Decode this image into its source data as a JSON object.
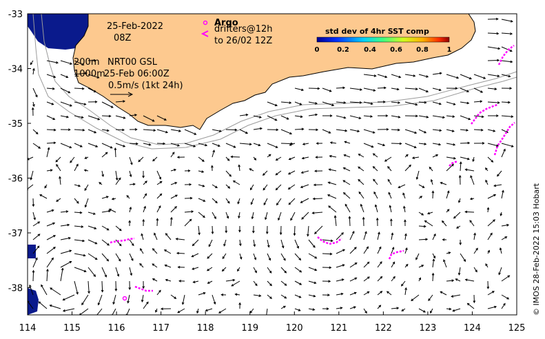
{
  "map": {
    "date": "25-Feb-2022",
    "hour": "08Z",
    "legend_argo_title": "Argo",
    "legend_drifters": "drifters@12h",
    "legend_drifters_until": "to 26/02 12Z",
    "isobath_200": "200m",
    "isobath_1000": "1000m",
    "product": "NRT00 GSL",
    "product_time": "25-Feb 06:00Z",
    "scale_text": "0.5m/s (1kt 24h)",
    "credit": "© IMOS 28-Feb-2022 15:03 Hobart",
    "colorbar": {
      "title": "std dev of 4hr SST comp",
      "ticks": [
        "0",
        "0.2",
        "0.4",
        "0.6",
        "0.8",
        "1"
      ]
    },
    "lon_ticks": [
      "114",
      "115",
      "116",
      "117",
      "118",
      "119",
      "120",
      "121",
      "122",
      "123",
      "124",
      "125"
    ],
    "lat_ticks": [
      "-33",
      "-34",
      "-35",
      "-36",
      "-37",
      "-38"
    ],
    "colors": {
      "land": "#fdc98f",
      "coast_line": "#000000",
      "isobath": "#9a9a9a",
      "sst_patch": "#0a1a8c",
      "drifter": "#ff00ff",
      "vector": "#000000"
    }
  }
}
